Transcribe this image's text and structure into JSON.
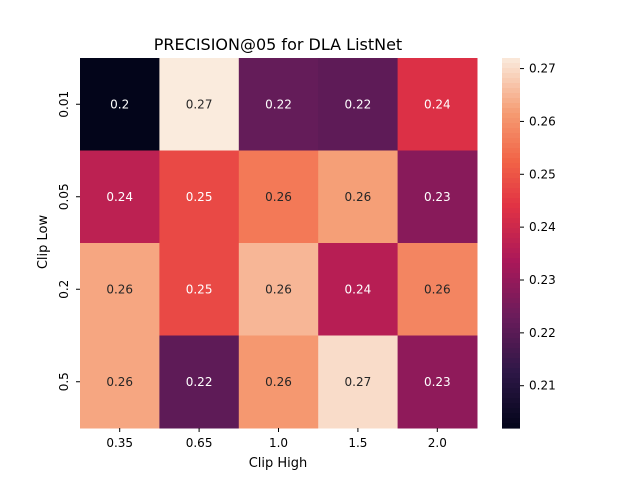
{
  "chart_data": {
    "type": "heatmap",
    "title": "PRECISION@05 for DLA ListNet",
    "xlabel": "Clip High",
    "ylabel": "Clip Low",
    "x_categories": [
      "0.35",
      "0.65",
      "1.0",
      "1.5",
      "2.0"
    ],
    "y_categories": [
      "0.01",
      "0.05",
      "0.2",
      "0.5"
    ],
    "values": [
      [
        0.202,
        0.272,
        0.222,
        0.221,
        0.243
      ],
      [
        0.237,
        0.248,
        0.256,
        0.262,
        0.228
      ],
      [
        0.263,
        0.248,
        0.265,
        0.236,
        0.258
      ],
      [
        0.263,
        0.221,
        0.261,
        0.27,
        0.229
      ]
    ],
    "cell_labels": [
      [
        "0.2",
        "0.27",
        "0.22",
        "0.22",
        "0.24"
      ],
      [
        "0.24",
        "0.25",
        "0.26",
        "0.26",
        "0.23"
      ],
      [
        "0.26",
        "0.25",
        "0.26",
        "0.24",
        "0.26"
      ],
      [
        "0.26",
        "0.22",
        "0.26",
        "0.27",
        "0.23"
      ]
    ],
    "colorbar": {
      "vmin": 0.202,
      "vmax": 0.272,
      "ticks": [
        "0.21",
        "0.22",
        "0.23",
        "0.24",
        "0.25",
        "0.26",
        "0.27"
      ],
      "colormap": "rocket"
    }
  }
}
